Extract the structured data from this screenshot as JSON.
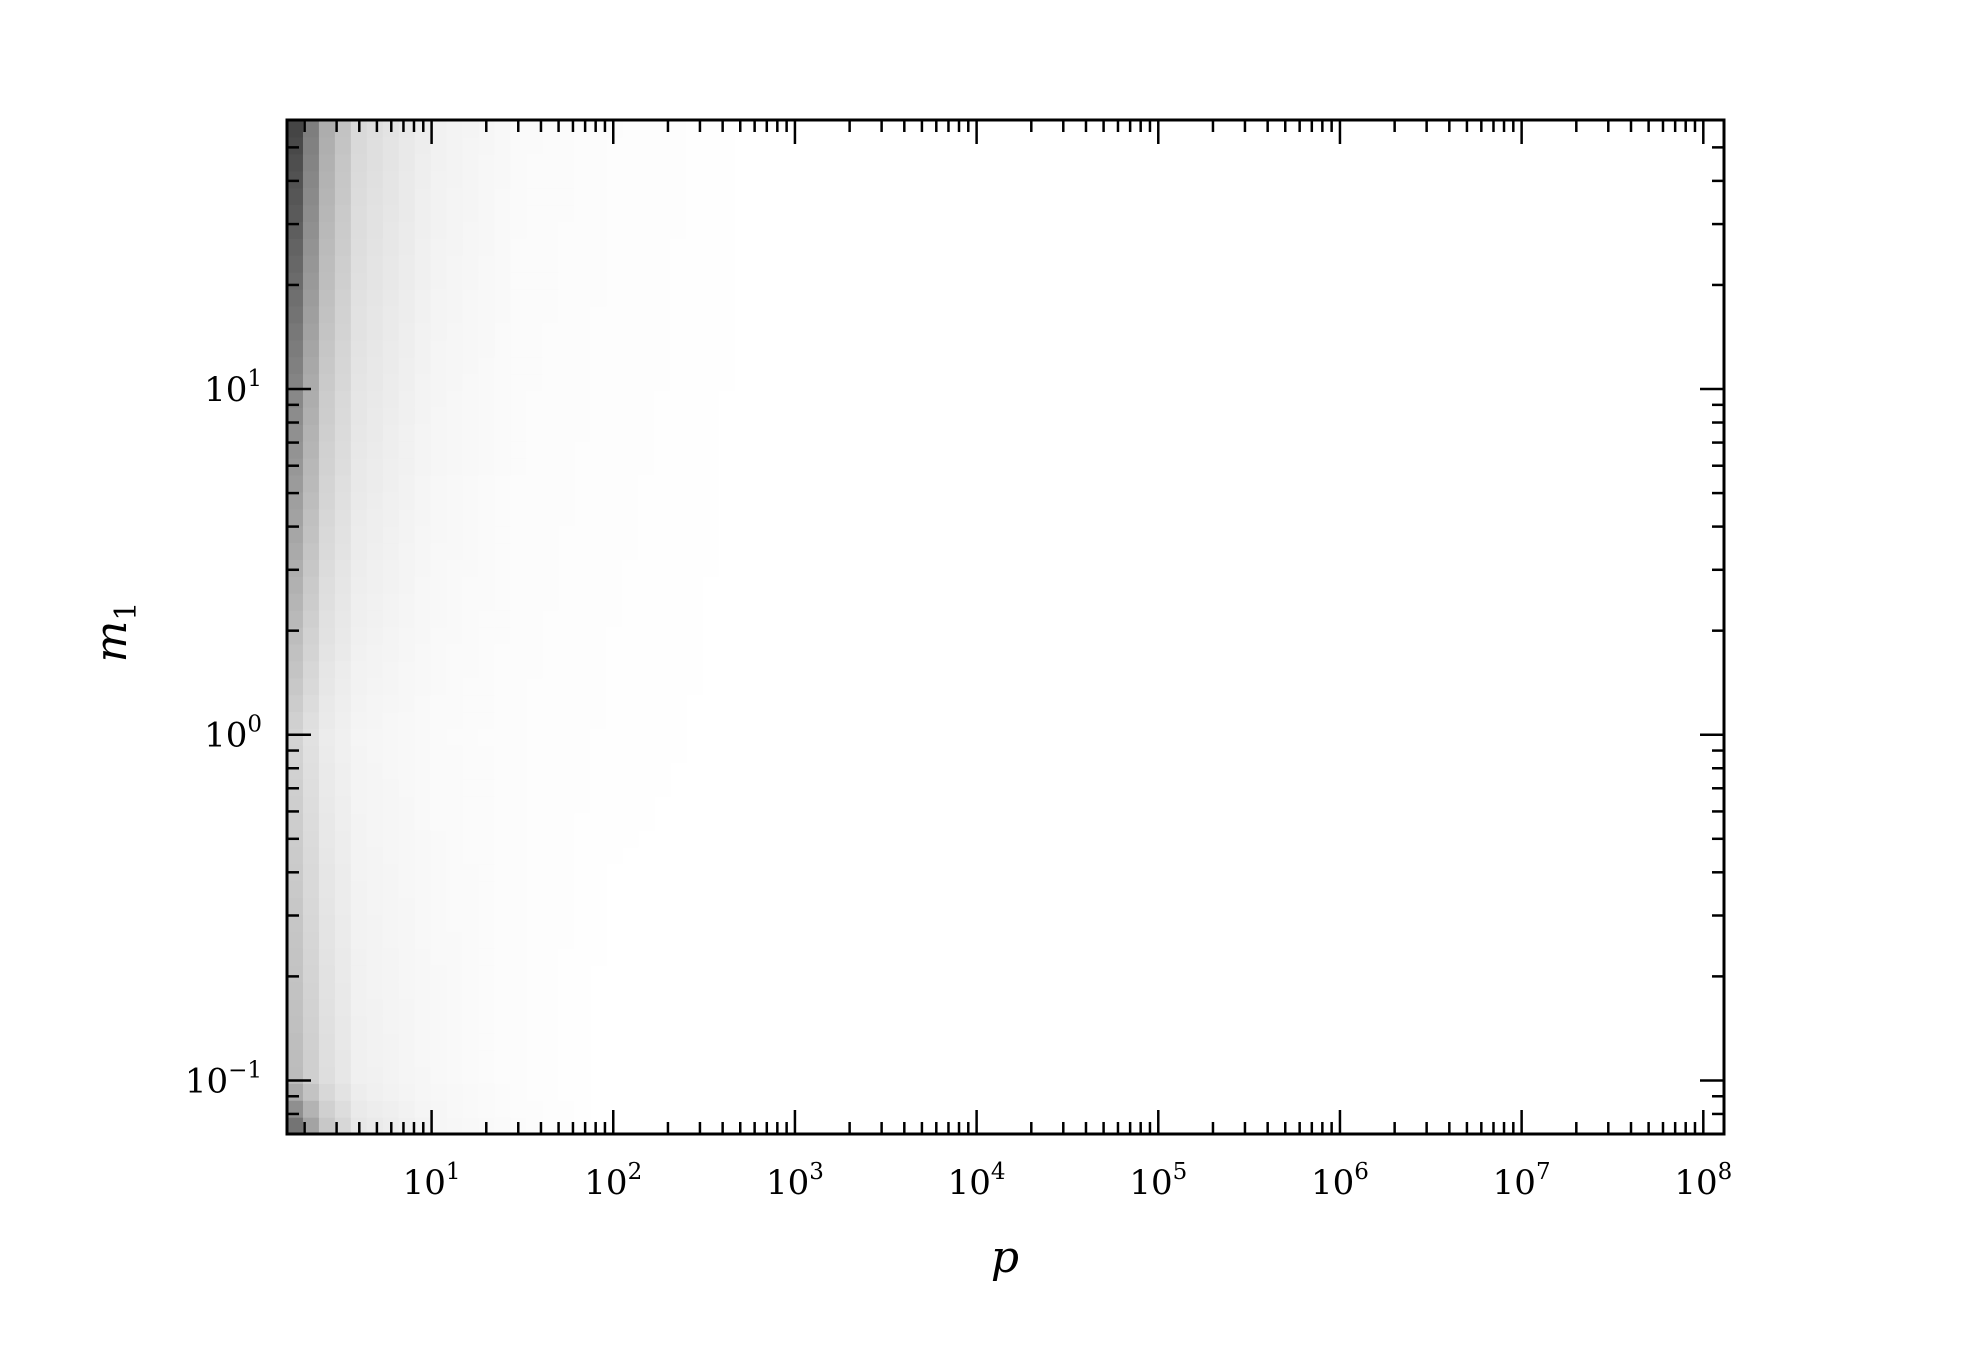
{
  "chart_data": {
    "type": "heatmap",
    "title": "",
    "xlabel": "p",
    "ylabel": "m",
    "ylabel_subscript": "1",
    "x_scale": "log",
    "y_scale": "log",
    "xlim": [
      1.6,
      130000000.0
    ],
    "ylim": [
      0.07,
      60
    ],
    "colormap": "white-to-black (darker = higher)",
    "grid": false,
    "legend": "none",
    "x_tick_labels": [
      {
        "value": 10,
        "base": "10",
        "exp": "1"
      },
      {
        "value": 100,
        "base": "10",
        "exp": "2"
      },
      {
        "value": 1000,
        "base": "10",
        "exp": "3"
      },
      {
        "value": 10000,
        "base": "10",
        "exp": "4"
      },
      {
        "value": 100000,
        "base": "10",
        "exp": "5"
      },
      {
        "value": 1000000,
        "base": "10",
        "exp": "6"
      },
      {
        "value": 10000000,
        "base": "10",
        "exp": "7"
      },
      {
        "value": 100000000,
        "base": "10",
        "exp": "8"
      }
    ],
    "y_tick_labels": [
      {
        "value": 0.1,
        "base": "10",
        "exp": "−1"
      },
      {
        "value": 1,
        "base": "10",
        "exp": "0"
      },
      {
        "value": 10,
        "base": "10",
        "exp": "1"
      }
    ],
    "description_points": {
      "x_samples": [
        1.6,
        2.5,
        4,
        10,
        30,
        100,
        1000
      ],
      "m1_samples": [
        60,
        10,
        1,
        0.1,
        0.07
      ],
      "intensity_at": [
        [
          0.85,
          0.35,
          0.15,
          0.06,
          0.02,
          0.01,
          0.0
        ],
        [
          0.55,
          0.22,
          0.1,
          0.04,
          0.015,
          0.008,
          0.0
        ],
        [
          0.2,
          0.08,
          0.04,
          0.02,
          0.01,
          0.005,
          0.0
        ],
        [
          0.3,
          0.14,
          0.06,
          0.03,
          0.01,
          0.0,
          0.0
        ],
        [
          0.7,
          0.25,
          0.1,
          0.04,
          0.015,
          0.0,
          0.0
        ]
      ]
    }
  },
  "colors": {
    "background": "#ffffff",
    "axis": "#000000",
    "max_color": "#000000",
    "min_color": "#ffffff"
  }
}
